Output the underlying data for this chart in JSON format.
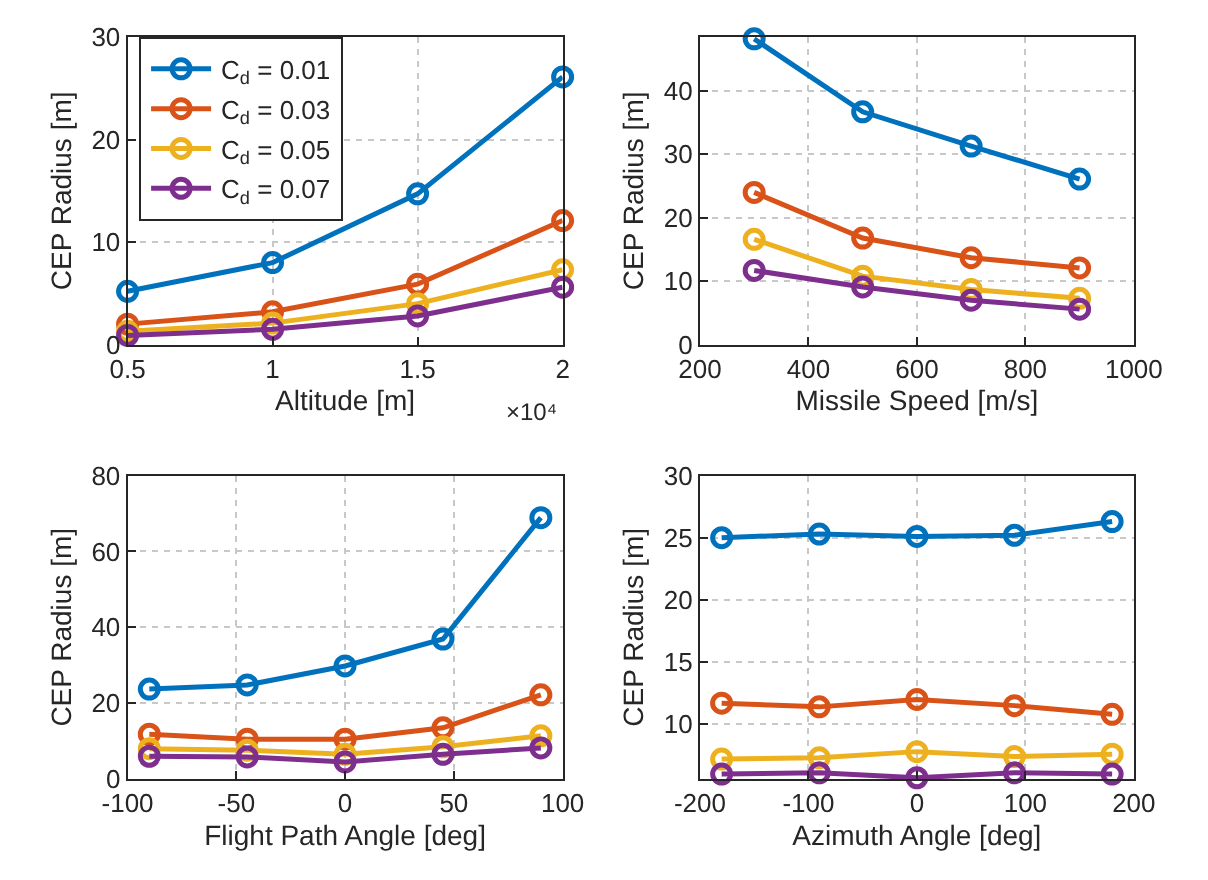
{
  "chart_data": [
    {
      "type": "line",
      "xlabel": "Altitude [m]",
      "ylabel": "CEP Radius [m]",
      "x": [
        0.5,
        1,
        1.5,
        2
      ],
      "xlim": [
        0.5,
        2
      ],
      "xticks": [
        0.5,
        1,
        1.5,
        2
      ],
      "ylim": [
        0,
        30
      ],
      "yticks": [
        0,
        10,
        20,
        30
      ],
      "annotations": [
        "×10⁴"
      ],
      "grid": true,
      "legend": "top left",
      "marker": "circle",
      "line_style": "solid",
      "series": [
        {
          "name": "C$_{d}$ = 0.01",
          "color": "#0072bd",
          "values": [
            5.2,
            8.0,
            14.7,
            26.1
          ]
        },
        {
          "name": "C$_{d}$ = 0.03",
          "color": "#d95319",
          "values": [
            2.0,
            3.2,
            5.9,
            12.1
          ]
        },
        {
          "name": "C$_{d}$ = 0.05",
          "color": "#edb120",
          "values": [
            1.3,
            2.1,
            4.0,
            7.3
          ]
        },
        {
          "name": "C$_{d}$ = 0.07",
          "color": "#7e2f8e",
          "values": [
            0.9,
            1.5,
            2.8,
            5.6
          ]
        }
      ]
    },
    {
      "type": "line",
      "xlabel": "Missile Speed [m/s]",
      "ylabel": "CEP Radius [m]",
      "x": [
        300,
        500,
        700,
        900
      ],
      "xlim": [
        200,
        1000
      ],
      "xticks": [
        200,
        400,
        600,
        800,
        1000
      ],
      "ylim": [
        0,
        48.5
      ],
      "yticks": [
        0,
        10,
        20,
        30,
        40
      ],
      "grid": true,
      "marker": "circle",
      "line_style": "solid",
      "series": [
        {
          "color": "#0072bd",
          "values": [
            48.2,
            36.7,
            31.3,
            26.1
          ]
        },
        {
          "color": "#d95319",
          "values": [
            24.0,
            16.8,
            13.7,
            12.1
          ]
        },
        {
          "color": "#edb120",
          "values": [
            16.6,
            10.8,
            8.7,
            7.3
          ]
        },
        {
          "color": "#7e2f8e",
          "values": [
            11.7,
            9.1,
            7.0,
            5.6
          ]
        }
      ]
    },
    {
      "type": "line",
      "xlabel": "Flight Path Angle [deg]",
      "ylabel": "CEP Radius [m]",
      "x": [
        -90,
        -45,
        0,
        45,
        90
      ],
      "xlim": [
        -100,
        100
      ],
      "xticks": [
        -100,
        -50,
        0,
        50,
        100
      ],
      "ylim": [
        0,
        80
      ],
      "yticks": [
        0,
        20,
        40,
        60,
        80
      ],
      "grid": true,
      "marker": "circle",
      "line_style": "solid",
      "series": [
        {
          "color": "#0072bd",
          "values": [
            23.7,
            24.8,
            29.8,
            36.9,
            68.9
          ]
        },
        {
          "color": "#d95319",
          "values": [
            11.8,
            10.5,
            10.5,
            13.5,
            22.2
          ]
        },
        {
          "color": "#edb120",
          "values": [
            8.0,
            7.6,
            6.5,
            8.5,
            11.4
          ]
        },
        {
          "color": "#7e2f8e",
          "values": [
            6.0,
            5.8,
            4.5,
            6.5,
            8.2
          ]
        }
      ]
    },
    {
      "type": "line",
      "xlabel": "Azimuth Angle [deg]",
      "ylabel": "CEP Radius [m]",
      "x": [
        -180,
        -90,
        0,
        90,
        180
      ],
      "xlim": [
        -200,
        200
      ],
      "xticks": [
        -200,
        -100,
        0,
        100,
        200
      ],
      "ylim": [
        5.6,
        30
      ],
      "yticks": [
        10,
        15,
        20,
        25,
        30
      ],
      "grid": true,
      "marker": "circle",
      "line_style": "solid",
      "series": [
        {
          "color": "#0072bd",
          "values": [
            25.0,
            25.3,
            25.1,
            25.2,
            26.3
          ]
        },
        {
          "color": "#d95319",
          "values": [
            11.7,
            11.4,
            12.0,
            11.5,
            10.8
          ]
        },
        {
          "color": "#edb120",
          "values": [
            7.2,
            7.3,
            7.8,
            7.4,
            7.6
          ]
        },
        {
          "color": "#7e2f8e",
          "values": [
            6.0,
            6.1,
            5.7,
            6.1,
            6.0
          ]
        }
      ]
    }
  ]
}
